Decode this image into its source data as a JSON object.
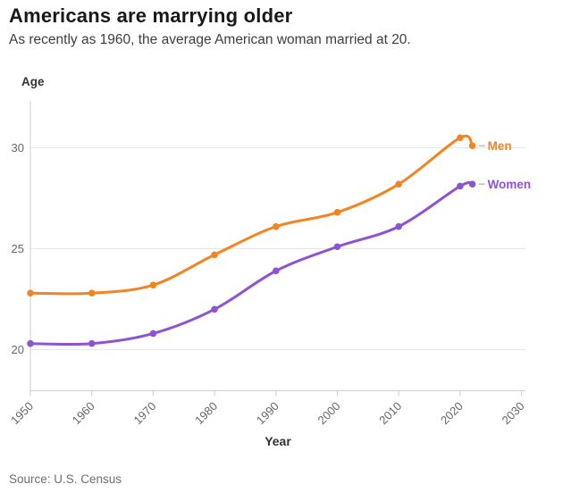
{
  "header": {
    "title": "Americans are marrying older",
    "subtitle": "As recently as 1960, the average American woman married at 20."
  },
  "chart_data": {
    "type": "line",
    "title": "Americans are marrying older",
    "subtitle": "As recently as 1960, the average American woman married at 20.",
    "xlabel": "Year",
    "ylabel": "Age",
    "x": [
      1950,
      1960,
      1970,
      1980,
      1990,
      2000,
      2010,
      2020,
      2022
    ],
    "series": [
      {
        "name": "Men",
        "color": "#F5831F",
        "values": [
          22.8,
          22.8,
          23.2,
          24.7,
          26.1,
          26.8,
          28.2,
          30.5,
          30.1
        ]
      },
      {
        "name": "Women",
        "color": "#8E52D5",
        "values": [
          20.3,
          20.3,
          20.8,
          22.0,
          23.9,
          25.1,
          26.1,
          28.1,
          28.2
        ]
      }
    ],
    "x_ticks": [
      1950,
      1960,
      1970,
      1980,
      1990,
      2000,
      2010,
      2020,
      2030
    ],
    "y_ticks": [
      20,
      25,
      30
    ],
    "xlim": [
      1950,
      2030
    ],
    "ylim": [
      17.9,
      32.3
    ],
    "grid": "horizontal only",
    "legend_position": "labels at line ends",
    "line_style": "smooth curve with point markers at each value"
  },
  "colors": {
    "men_line": "#F5831F",
    "women_line": "#8E52D5",
    "gridline": "#e7e7e7",
    "axis_line": "#cfcfcf",
    "tick_text": "#666666",
    "title_text": "#191919",
    "connector_dash": "#bdbdbd"
  },
  "footer": {
    "source": "Source: U.S. Census"
  }
}
